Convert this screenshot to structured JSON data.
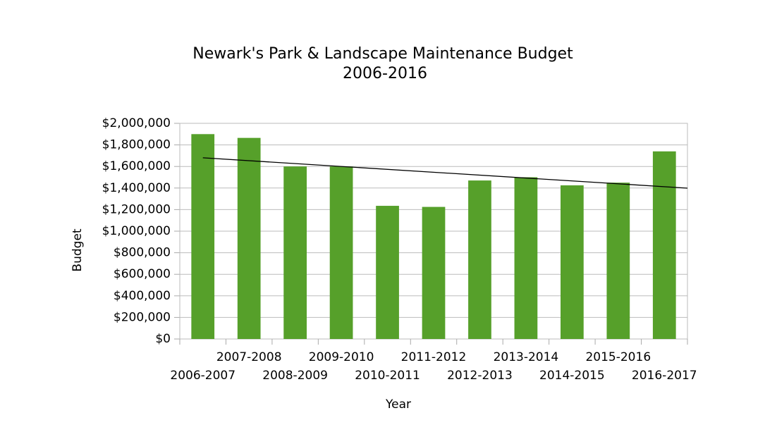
{
  "chart_data": {
    "type": "bar",
    "title": "Newark's Park & Landscape Maintenance Budget",
    "subtitle": "2006-2016",
    "x_label": "Year",
    "y_label": "Budget",
    "categories": [
      "2006-2007",
      "2007-2008",
      "2008-2009",
      "2009-2010",
      "2010-2011",
      "2011-2012",
      "2012-2013",
      "2013-2014",
      "2014-2015",
      "2015-2016",
      "2016-2017"
    ],
    "values": [
      1900000,
      1865000,
      1600000,
      1600000,
      1235000,
      1225000,
      1470000,
      1500000,
      1425000,
      1450000,
      1740000
    ],
    "color": "#56a02a",
    "trendline": true,
    "ylim": [
      0,
      2000000
    ],
    "yticks": [
      {
        "value": 0,
        "label": "$0"
      },
      {
        "value": 200000,
        "label": "$200,000"
      },
      {
        "value": 400000,
        "label": "$400,000"
      },
      {
        "value": 600000,
        "label": "$600,000"
      },
      {
        "value": 800000,
        "label": "$800,000"
      },
      {
        "value": 1000000,
        "label": "$1,000,000"
      },
      {
        "value": 1200000,
        "label": "$1,200,000"
      },
      {
        "value": 1400000,
        "label": "$1,400,000"
      },
      {
        "value": 1600000,
        "label": "$1,600,000"
      },
      {
        "value": 1800000,
        "label": "$1,800,000"
      },
      {
        "value": 2000000,
        "label": "$2,000,000"
      }
    ],
    "grid": true
  }
}
